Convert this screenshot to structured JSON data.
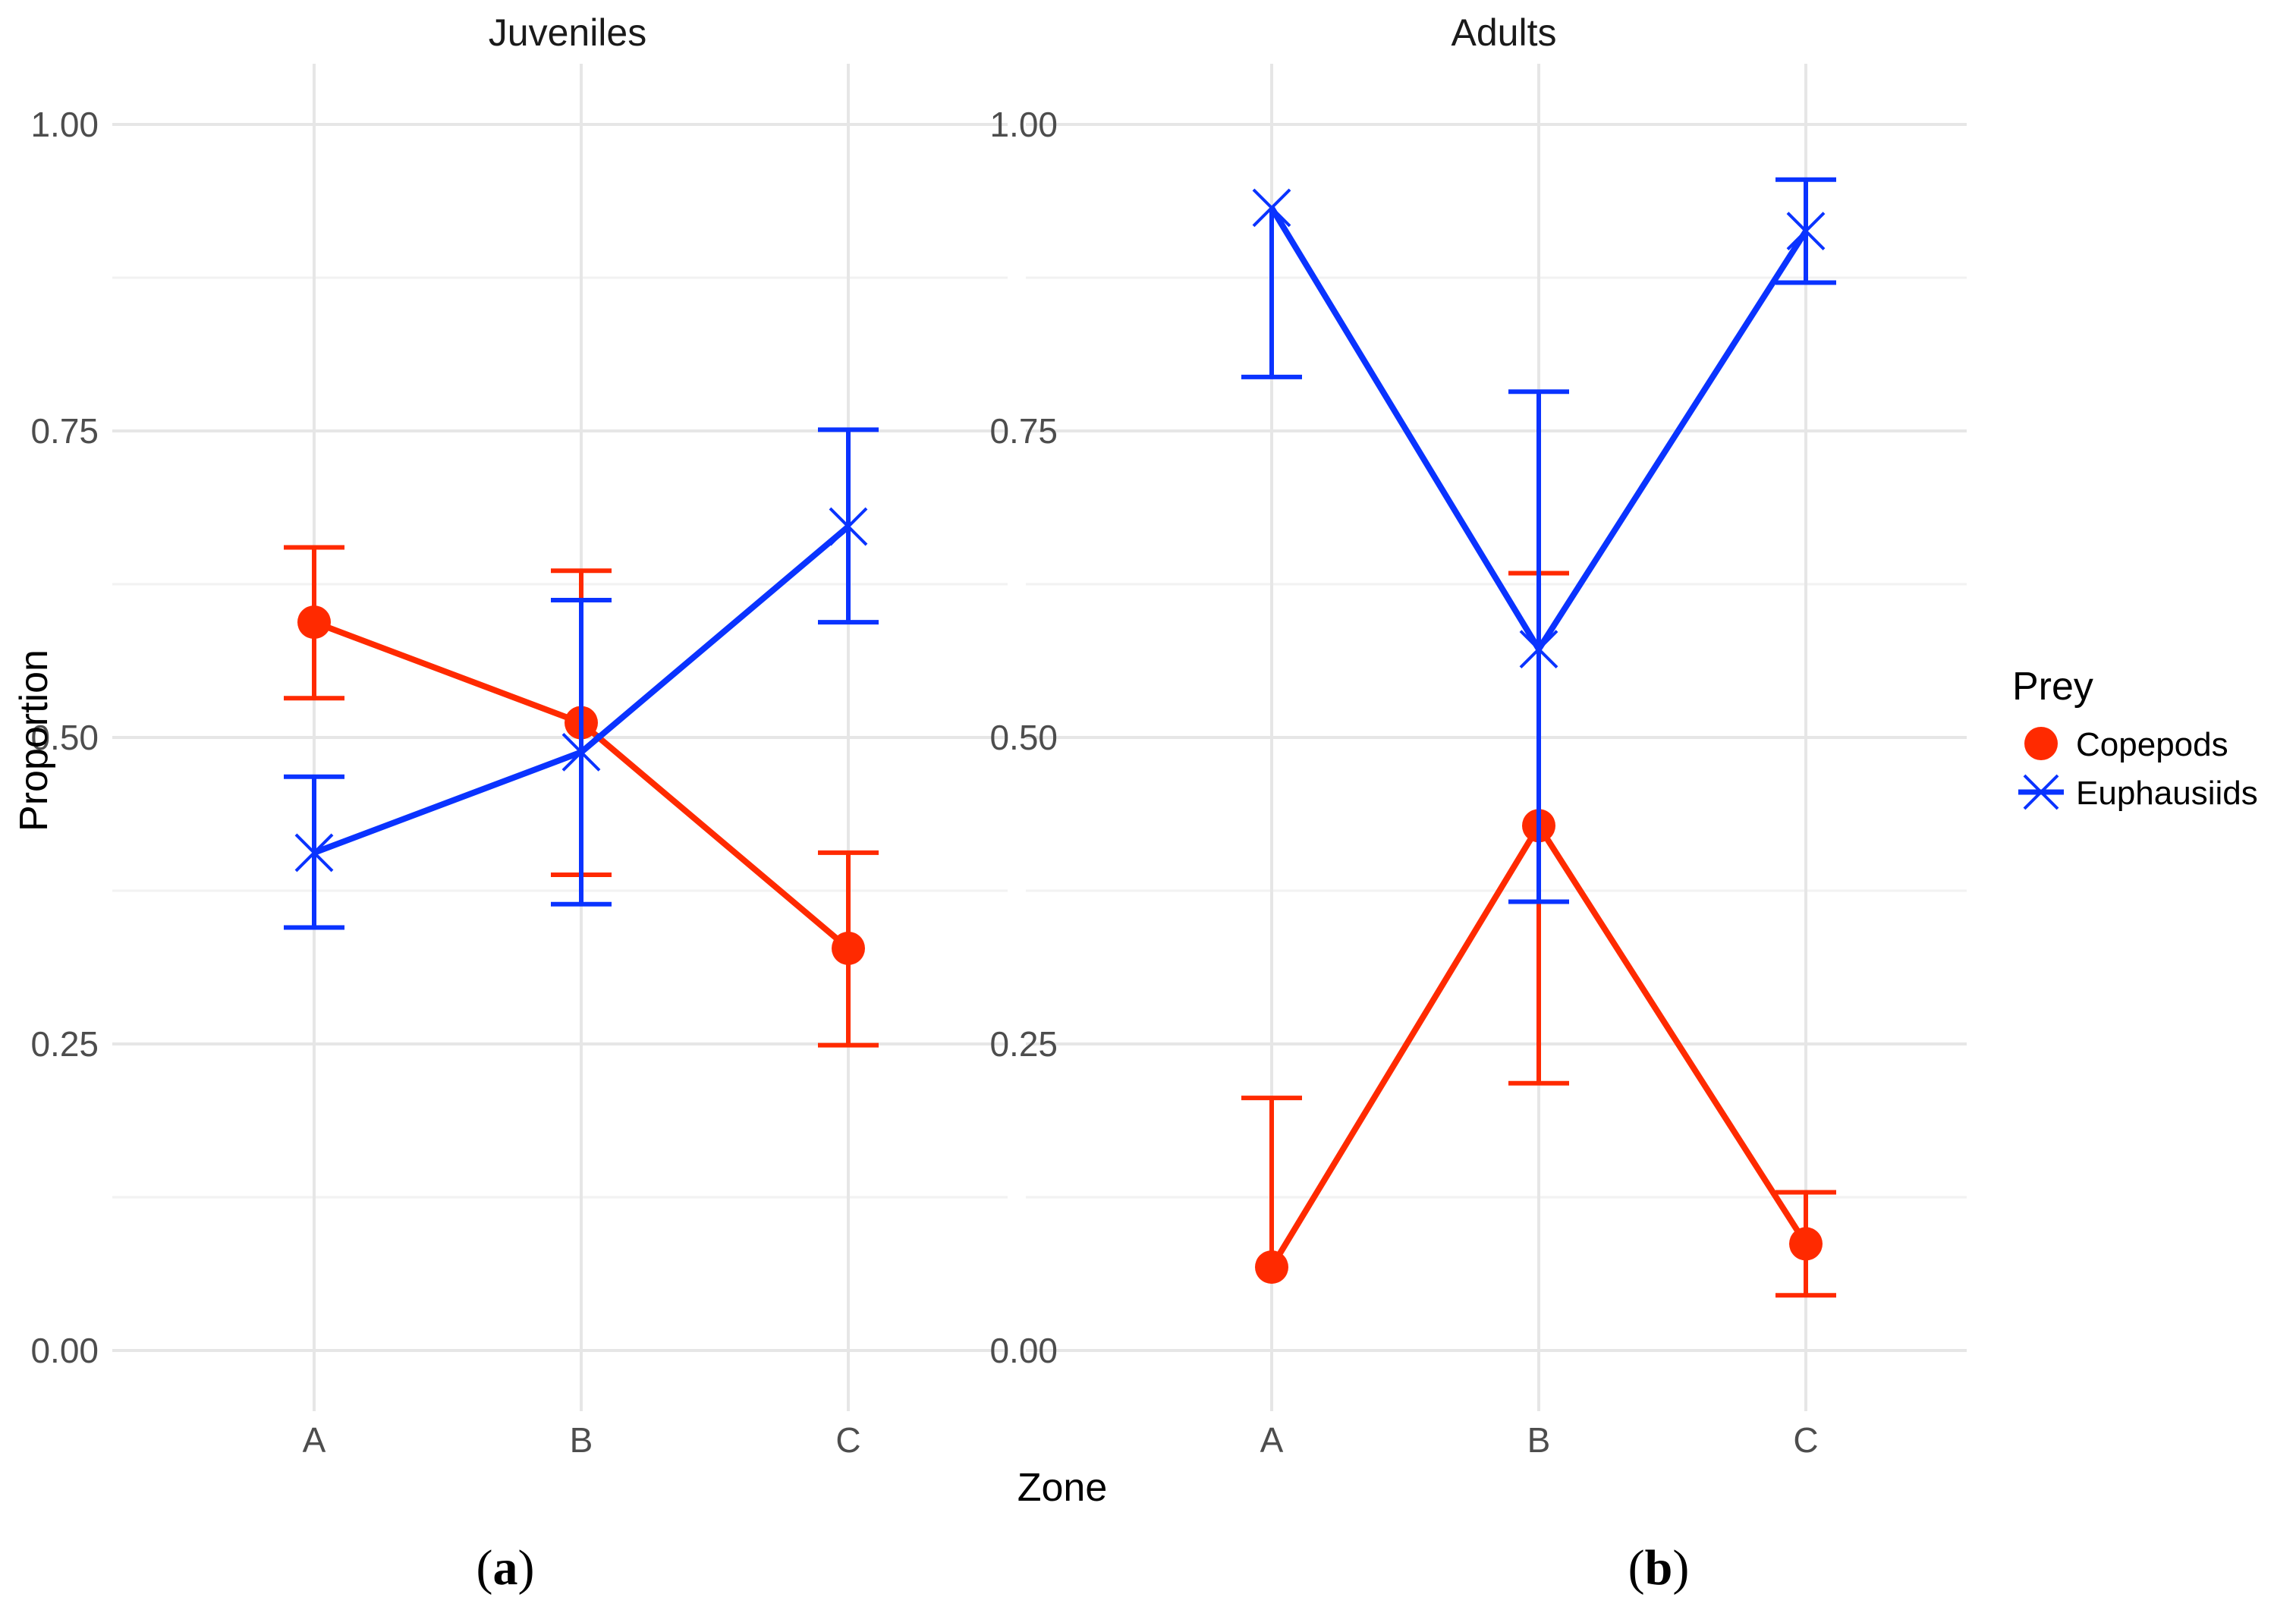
{
  "chart_data": {
    "type": "line",
    "xlabel": "Zone",
    "ylabel": "Proportion",
    "ylim": [
      0,
      1
    ],
    "y_ticks": [
      "0.00",
      "0.25",
      "0.50",
      "0.75",
      "1.00"
    ],
    "categories": [
      "A",
      "B",
      "C"
    ],
    "legend": {
      "title": "Prey",
      "position": "right",
      "entries": [
        {
          "name": "Copepods",
          "color": "#ff2a00",
          "shape": "circle"
        },
        {
          "name": "Euphausiids",
          "color": "#0a33ff",
          "shape": "cross"
        }
      ]
    },
    "panels": [
      {
        "title": "Juveniles",
        "caption": {
          "open": "(",
          "letter": "a",
          "close": ")"
        },
        "series": [
          {
            "name": "Copepods",
            "color": "#ff2a00",
            "shape": "circle",
            "values": [
              0.594,
              0.512,
              0.328
            ],
            "lower": [
              0.532,
              0.388,
              0.249
            ],
            "upper": [
              0.655,
              0.636,
              0.406
            ]
          },
          {
            "name": "Euphausiids",
            "color": "#0a33ff",
            "shape": "cross",
            "values": [
              0.406,
              0.488,
              0.672
            ],
            "lower": [
              0.345,
              0.364,
              0.594
            ],
            "upper": [
              0.468,
              0.612,
              0.751
            ]
          }
        ]
      },
      {
        "title": "Adults",
        "caption": {
          "open": "(",
          "letter": "b",
          "close": ")"
        },
        "series": [
          {
            "name": "Copepods",
            "color": "#ff2a00",
            "shape": "circle",
            "values": [
              0.068,
              0.428,
              0.087
            ],
            "lower": [
              null,
              0.218,
              0.045
            ],
            "upper": [
              0.206,
              0.634,
              0.129
            ]
          },
          {
            "name": "Euphausiids",
            "color": "#0a33ff",
            "shape": "cross",
            "values": [
              0.932,
              0.572,
              0.913
            ],
            "lower": [
              0.794,
              0.366,
              0.871
            ],
            "upper": [
              null,
              0.782,
              0.955
            ]
          }
        ]
      }
    ]
  }
}
